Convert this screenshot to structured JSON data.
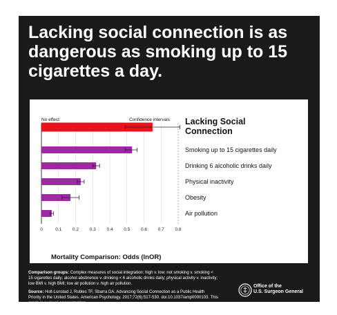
{
  "headline": "Lacking social connection is as dangerous as smoking up to 15 cigarettes a day.",
  "chart_data": {
    "type": "bar",
    "orientation": "horizontal",
    "categories": [
      "Lacking Social Connection",
      "Smoking up to 15 cigarettes daily",
      "Drinking 6 alcoholic drinks daily",
      "Physical inactivity",
      "Obesity",
      "Air pollution"
    ],
    "values": [
      0.65,
      0.53,
      0.32,
      0.23,
      0.17,
      0.06
    ],
    "ci_low": [
      0.49,
      0.49,
      0.3,
      0.21,
      0.12,
      0.05
    ],
    "ci_high": [
      0.81,
      0.56,
      0.34,
      0.25,
      0.22,
      0.07
    ],
    "colors": [
      "#e8141c",
      "#9c2ba1",
      "#9c2ba1",
      "#9c2ba1",
      "#9c2ba1",
      "#9c2ba1"
    ],
    "xlim": [
      0,
      0.8
    ],
    "xticks": [
      "0",
      "0.1",
      "0.2",
      "0.3",
      "0.4",
      "0.5",
      "0.6",
      "0.7",
      "0.8"
    ],
    "xlabel": "Mortality Comparison: Odds (lnOR)",
    "annotation_left": "No effect",
    "annotation_right": "Confidence intervals",
    "grid": true
  },
  "notes": {
    "comparison_heading": "Comparison groups:",
    "comparison_text": "Complex measures of social integration: high v. low; not smoking v. smoking < 15 cigarettes daily; alcohol abstinence v. drinking < 6 alcoholic drinks daily; physical activity v. inactivity; low BMI v. high BMI; low air pollution v. high air pollution.",
    "source_heading": "Source:",
    "source_text": "Holt-Lunstad J, Robles TF, Sbarra DA. Advancing Social Connection as a Public Health Priority in the United States. American Psychology. 2017;72(6):517-530. doi:10.1037/amp0000103. This graph is a visual approximation."
  },
  "org": {
    "line1": "Office of the",
    "line2": "U.S. Surgeon General",
    "seal_icon": "surgeon-general-seal-icon"
  }
}
